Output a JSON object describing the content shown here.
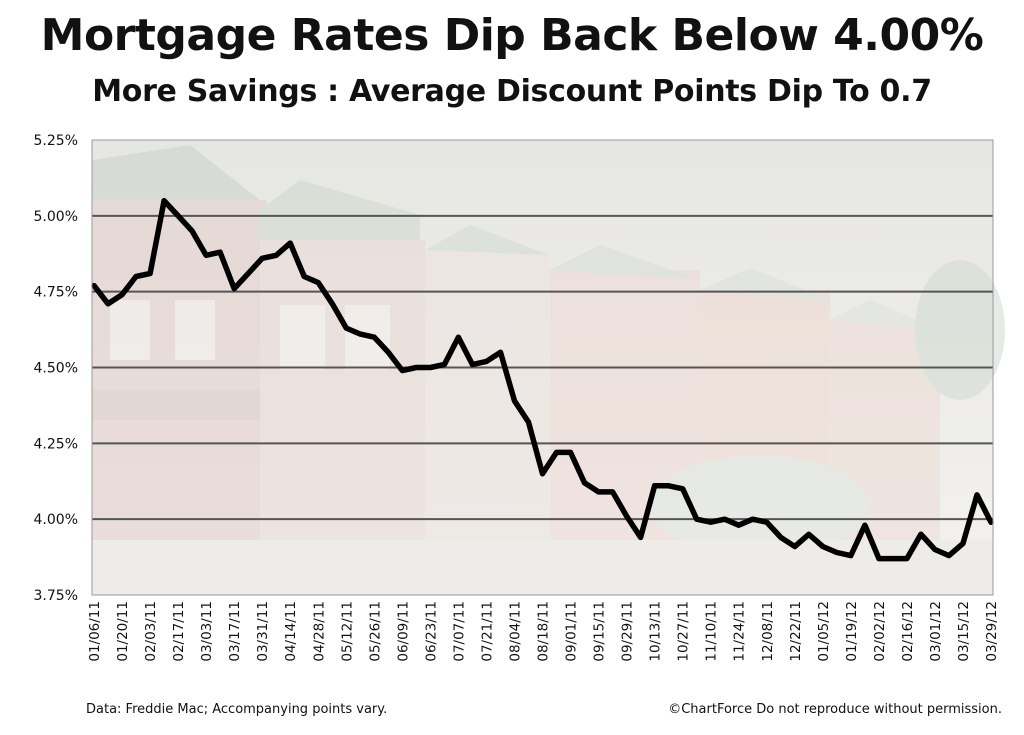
{
  "chart_data": {
    "type": "line",
    "title": "Mortgage Rates Dip Back Below 4.00%",
    "subtitle": "More Savings : Average Discount Points Dip To 0.7",
    "xlabel": "",
    "ylabel": "",
    "ylim": [
      3.75,
      5.25
    ],
    "y_ticks": [
      3.75,
      4.0,
      4.25,
      4.5,
      4.75,
      5.0,
      5.25
    ],
    "y_tick_labels": [
      "3.75%",
      "4.00%",
      "4.25%",
      "4.50%",
      "4.75%",
      "5.00%",
      "5.25%"
    ],
    "grid": true,
    "x_tick_labels": [
      "01/06/11",
      "01/20/11",
      "02/03/11",
      "02/17/11",
      "03/03/11",
      "03/17/11",
      "03/31/11",
      "04/14/11",
      "04/28/11",
      "05/12/11",
      "05/26/11",
      "06/09/11",
      "06/23/11",
      "07/07/11",
      "07/21/11",
      "08/04/11",
      "08/18/11",
      "09/01/11",
      "09/15/11",
      "09/29/11",
      "10/13/11",
      "10/27/11",
      "11/10/11",
      "11/24/11",
      "12/08/11",
      "12/22/11",
      "01/05/12",
      "01/19/12",
      "02/02/12",
      "02/16/12",
      "03/01/12",
      "03/15/12",
      "03/29/12"
    ],
    "series": [
      {
        "color": "#000000",
        "x": [
          "01/06/11",
          "01/13/11",
          "01/20/11",
          "01/27/11",
          "02/03/11",
          "02/10/11",
          "02/17/11",
          "02/24/11",
          "03/03/11",
          "03/10/11",
          "03/17/11",
          "03/24/11",
          "03/31/11",
          "04/07/11",
          "04/14/11",
          "04/21/11",
          "04/28/11",
          "05/05/11",
          "05/12/11",
          "05/19/11",
          "05/26/11",
          "06/02/11",
          "06/09/11",
          "06/16/11",
          "06/23/11",
          "06/30/11",
          "07/07/11",
          "07/14/11",
          "07/21/11",
          "07/28/11",
          "08/04/11",
          "08/11/11",
          "08/18/11",
          "08/25/11",
          "09/01/11",
          "09/08/11",
          "09/15/11",
          "09/22/11",
          "09/29/11",
          "10/06/11",
          "10/13/11",
          "10/20/11",
          "10/27/11",
          "11/03/11",
          "11/10/11",
          "11/17/11",
          "11/24/11",
          "12/01/11",
          "12/08/11",
          "12/15/11",
          "12/22/11",
          "12/29/11",
          "01/05/12",
          "01/12/12",
          "01/19/12",
          "01/26/12",
          "02/02/12",
          "02/09/12",
          "02/16/12",
          "02/23/12",
          "03/01/12",
          "03/08/12",
          "03/15/12",
          "03/22/12",
          "03/29/12"
        ],
        "values": [
          4.77,
          4.71,
          4.74,
          4.8,
          4.81,
          5.05,
          5.0,
          4.95,
          4.87,
          4.88,
          4.76,
          4.81,
          4.86,
          4.87,
          4.91,
          4.8,
          4.78,
          4.71,
          4.63,
          4.61,
          4.6,
          4.55,
          4.49,
          4.5,
          4.5,
          4.51,
          4.6,
          4.51,
          4.52,
          4.55,
          4.39,
          4.32,
          4.15,
          4.22,
          4.22,
          4.12,
          4.09,
          4.09,
          4.01,
          3.94,
          4.11,
          4.11,
          4.1,
          4.0,
          3.99,
          4.0,
          3.98,
          4.0,
          3.99,
          3.94,
          3.91,
          3.95,
          3.91,
          3.89,
          3.88,
          3.98,
          3.87,
          3.87,
          3.87,
          3.95,
          3.9,
          3.88,
          3.92,
          4.08,
          3.99
        ]
      }
    ]
  },
  "footer": {
    "source": "Data: Freddie Mac; Accompanying points vary.",
    "copyright": "©ChartForce  Do not reproduce without permission."
  }
}
